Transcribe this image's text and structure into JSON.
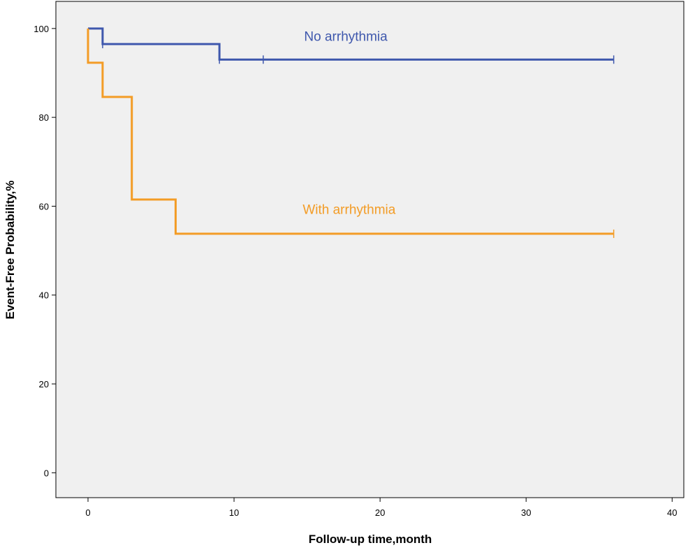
{
  "chart_data": {
    "type": "line",
    "step": true,
    "title": "",
    "xlabel": "Follow-up time,month",
    "ylabel": "Event-Free Probability,%",
    "xlim": [
      -2.2,
      40.8
    ],
    "ylim": [
      -5.6,
      106.1
    ],
    "x_ticks": [
      0,
      10,
      20,
      30,
      40
    ],
    "y_ticks": [
      0,
      20,
      40,
      60,
      80,
      100
    ],
    "grid": false,
    "background": "#f0f0f0",
    "series": [
      {
        "name": "No arrhythmia",
        "color": "#3f58ad",
        "steps": [
          [
            0,
            100
          ],
          [
            1,
            96.5
          ],
          [
            9,
            93
          ],
          [
            36,
            93
          ]
        ],
        "censored": [
          [
            1,
            96.5
          ],
          [
            9,
            93
          ],
          [
            12,
            93
          ],
          [
            36,
            93
          ]
        ],
        "label_at": [
          14.8,
          97.2
        ]
      },
      {
        "name": "With arrhythmia",
        "color": "#f39c26",
        "steps": [
          [
            0,
            100
          ],
          [
            0,
            92.3
          ],
          [
            1,
            84.6
          ],
          [
            3,
            61.5
          ],
          [
            6,
            53.8
          ],
          [
            36,
            53.8
          ]
        ],
        "censored": [
          [
            36,
            53.8
          ]
        ],
        "label_at": [
          14.7,
          58.3
        ]
      }
    ]
  }
}
